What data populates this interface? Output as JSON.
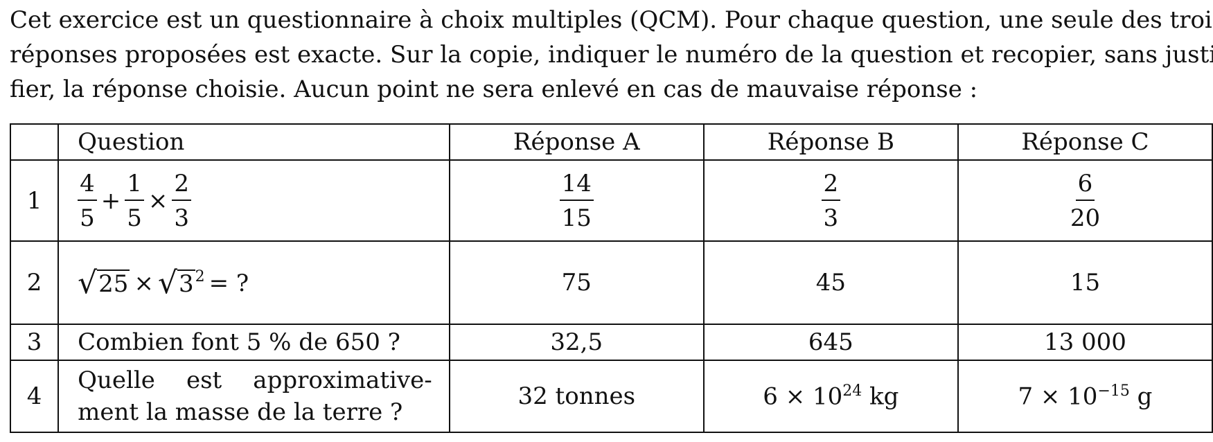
{
  "intro": {
    "line1": "Cet exercice est un questionnaire à choix multiples (QCM). Pour chaque question, une seule des trois",
    "line2": "réponses proposées est exacte. Sur la copie, indiquer le numéro de la question et recopier, sans justi-",
    "line3": "fier, la réponse choisie. Aucun point ne sera enlevé en cas de mauvaise réponse :"
  },
  "table": {
    "headers": {
      "num": "",
      "question": "Question",
      "a": "Réponse A",
      "b": "Réponse B",
      "c": "Réponse C"
    },
    "row1": {
      "num": "1",
      "q": {
        "f1n": "4",
        "f1d": "5",
        "op1": "+",
        "f2n": "1",
        "f2d": "5",
        "op2": "×",
        "f3n": "2",
        "f3d": "3"
      },
      "a": {
        "n": "14",
        "d": "15"
      },
      "b": {
        "n": "2",
        "d": "3"
      },
      "c": {
        "n": "6",
        "d": "20"
      }
    },
    "row2": {
      "num": "2",
      "q": {
        "rad1": "25",
        "op": "×",
        "rad2": "3",
        "exp": "2",
        "tail": "= ?"
      },
      "a": "75",
      "b": "45",
      "c": "15"
    },
    "row3": {
      "num": "3",
      "q": "Combien font 5 % de 650 ?",
      "a": "32,5",
      "b": "645",
      "c": "13 000"
    },
    "row4": {
      "num": "4",
      "q_line1": "Quelle est approximative-",
      "q_line2": "ment la masse de la terre ?",
      "a": "32 tonnes",
      "b": {
        "base": "6 × 10",
        "exp": "24",
        "unit": " kg"
      },
      "c": {
        "base": "7 × 10",
        "exp": "−15",
        "unit": " g"
      }
    }
  }
}
